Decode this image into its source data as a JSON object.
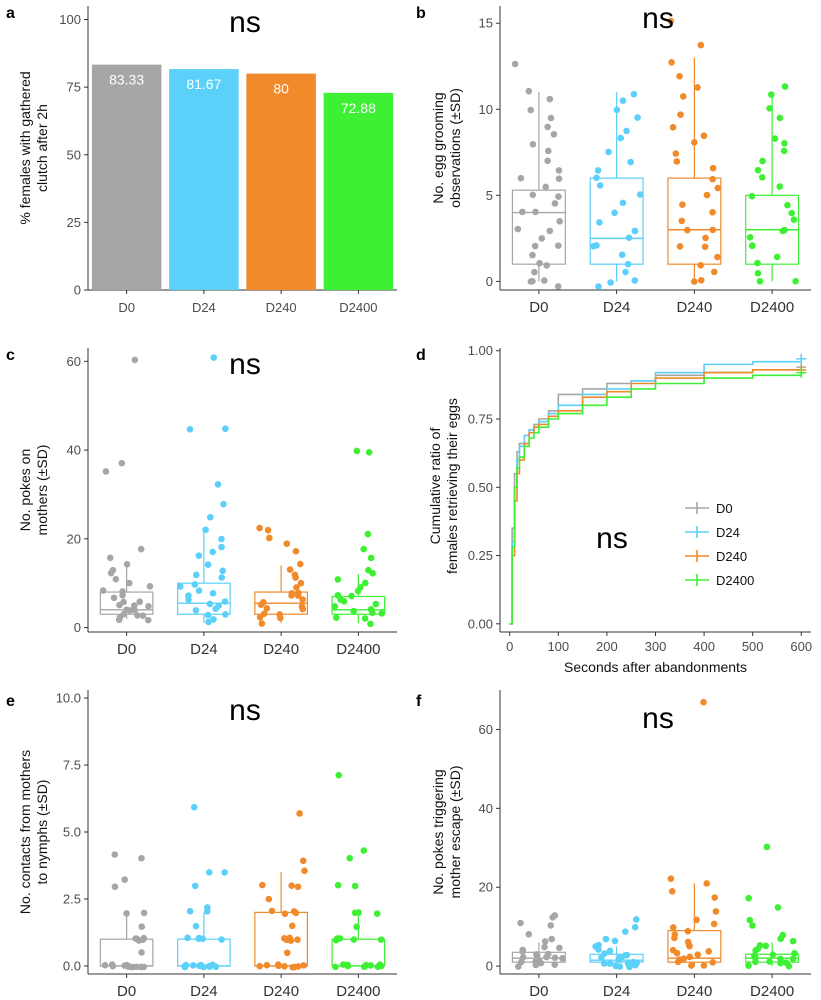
{
  "ns_label": "ns",
  "chart_data": [
    {
      "panel": "a",
      "type": "bar",
      "title": "ns",
      "categories": [
        "D0",
        "D24",
        "D240",
        "D2400"
      ],
      "values": [
        83.33,
        81.67,
        80,
        72.88
      ],
      "value_labels": [
        "83.33",
        "81.67",
        "80",
        "72.88"
      ],
      "colors": [
        "#a6a6a6",
        "#5bd0f8",
        "#f08a2a",
        "#3ef033"
      ],
      "ylabel": "% females with gathered clutch after 2h",
      "ylabel_lines": [
        "% females with gathered",
        "clutch after 2h"
      ],
      "ylim": [
        0,
        105
      ],
      "yticks": [
        0,
        25,
        50,
        75,
        100
      ],
      "ytick_labels": [
        "0",
        "25",
        "50",
        "75",
        "100"
      ]
    },
    {
      "panel": "b",
      "type": "box",
      "title": "ns",
      "categories": [
        "D0",
        "D24",
        "D240",
        "D2400"
      ],
      "colors": [
        "#a6a6a6",
        "#5bd0f8",
        "#f08a2a",
        "#3ef033"
      ],
      "ylabel": "No. egg grooming observations (±SD)",
      "ylabel_lines": [
        "No. egg grooming",
        "observations (±SD)"
      ],
      "ylim": [
        -0.5,
        16
      ],
      "yticks": [
        0,
        5,
        10,
        15
      ],
      "ytick_labels": [
        "0",
        "5",
        "10",
        "15"
      ],
      "boxes": [
        {
          "min": 0,
          "q1": 1,
          "median": 4,
          "q3": 5.3,
          "max": 11
        },
        {
          "min": 0,
          "q1": 1,
          "median": 2.5,
          "q3": 6,
          "max": 11
        },
        {
          "min": 0,
          "q1": 1,
          "median": 3,
          "q3": 6,
          "max": 13
        },
        {
          "min": 0,
          "q1": 1,
          "median": 3,
          "q3": 5,
          "max": 11
        }
      ],
      "points": [
        [
          12.7,
          11,
          10.6,
          10,
          9.5,
          9,
          8.5,
          8,
          7.5,
          7,
          6.5,
          6,
          6,
          5.5,
          5,
          5,
          4.5,
          4,
          4,
          3.5,
          3,
          3,
          2.5,
          2,
          2,
          1.5,
          1,
          1,
          0.5,
          0,
          0,
          0,
          -0.3
        ],
        [
          10.9,
          10.5,
          10,
          9.5,
          8.7,
          8.3,
          7.5,
          7,
          6.5,
          6,
          5.5,
          5,
          4.5,
          4,
          3.5,
          3,
          3,
          2.5,
          2,
          2,
          1.5,
          1,
          0.5,
          0,
          0,
          -0.3
        ],
        [
          15.2,
          13.8,
          12.8,
          12,
          11.3,
          10.7,
          9.7,
          9,
          8.5,
          8,
          7.5,
          7,
          6.5,
          6,
          5.5,
          5,
          4.5,
          4,
          3.5,
          3,
          3,
          2.5,
          2,
          2,
          1.5,
          1,
          0.5,
          0,
          0
        ],
        [
          11.4,
          10.8,
          10,
          9.5,
          8.3,
          8,
          7.5,
          7,
          6.5,
          6,
          5.5,
          5,
          4.5,
          4,
          3.5,
          3,
          3,
          2.5,
          2,
          2,
          1.5,
          1,
          0.5,
          0,
          0
        ]
      ]
    },
    {
      "panel": "c",
      "type": "box",
      "title": "ns",
      "categories": [
        "D0",
        "D24",
        "D240",
        "D2400"
      ],
      "colors": [
        "#a6a6a6",
        "#5bd0f8",
        "#f08a2a",
        "#3ef033"
      ],
      "ylabel": "No. pokes on mothers (±SD)",
      "ylabel_lines": [
        "No. pokes on",
        "mothers (±SD)"
      ],
      "ylim": [
        -1,
        63
      ],
      "yticks": [
        0,
        20,
        40,
        60
      ],
      "ytick_labels": [
        "0",
        "20",
        "40",
        "60"
      ],
      "boxes": [
        {
          "min": 2,
          "q1": 3,
          "median": 4,
          "q3": 8,
          "max": 15
        },
        {
          "min": 1,
          "q1": 3,
          "median": 5.5,
          "q3": 10,
          "max": 22
        },
        {
          "min": 1,
          "q1": 3,
          "median": 5.5,
          "q3": 8,
          "max": 14
        },
        {
          "min": 1,
          "q1": 3,
          "median": 4,
          "q3": 7,
          "max": 12
        }
      ],
      "points": [
        [
          60.5,
          37,
          35,
          18,
          16,
          14,
          13,
          12,
          11,
          10,
          9,
          8,
          8,
          7,
          7,
          6,
          6,
          5,
          5,
          5,
          4,
          4,
          4,
          3,
          3,
          3,
          2,
          2,
          2
        ],
        [
          61,
          45,
          44.5,
          32,
          28,
          25,
          22,
          20,
          18,
          17,
          16,
          14,
          13,
          12,
          11,
          10,
          9,
          8,
          8,
          7,
          6,
          6,
          5,
          5,
          4,
          4,
          3,
          3,
          2,
          1
        ],
        [
          22.5,
          22,
          20,
          19,
          17,
          14,
          13,
          12,
          11,
          10,
          9,
          8,
          8,
          7,
          7,
          6,
          6,
          5,
          5,
          4,
          4,
          3,
          3,
          2,
          2,
          1
        ],
        [
          40,
          39.5,
          21,
          18,
          16,
          13,
          12,
          11,
          10,
          9,
          8,
          7,
          7,
          6,
          6,
          5,
          5,
          4,
          4,
          3,
          3,
          2,
          2,
          1
        ]
      ]
    },
    {
      "panel": "d",
      "type": "line",
      "title": "ns",
      "series": [
        {
          "name": "D0",
          "color": "#a6a6a6",
          "x": [
            0,
            5,
            10,
            15,
            20,
            30,
            40,
            50,
            60,
            80,
            100,
            150,
            200,
            250,
            300,
            400,
            500,
            600
          ],
          "y": [
            0,
            0.35,
            0.55,
            0.63,
            0.66,
            0.69,
            0.71,
            0.73,
            0.75,
            0.78,
            0.84,
            0.86,
            0.88,
            0.89,
            0.91,
            0.92,
            0.93,
            0.94
          ]
        },
        {
          "name": "D24",
          "color": "#5bd0f8",
          "x": [
            0,
            5,
            10,
            15,
            20,
            30,
            40,
            50,
            60,
            80,
            100,
            150,
            200,
            250,
            300,
            400,
            500,
            600
          ],
          "y": [
            0,
            0.3,
            0.5,
            0.6,
            0.65,
            0.69,
            0.71,
            0.72,
            0.74,
            0.77,
            0.8,
            0.84,
            0.86,
            0.89,
            0.92,
            0.95,
            0.96,
            0.97
          ]
        },
        {
          "name": "D240",
          "color": "#f08a2a",
          "x": [
            0,
            5,
            10,
            15,
            20,
            30,
            40,
            50,
            60,
            80,
            100,
            150,
            200,
            250,
            300,
            400,
            500,
            600
          ],
          "y": [
            0,
            0.25,
            0.45,
            0.55,
            0.6,
            0.66,
            0.7,
            0.72,
            0.73,
            0.76,
            0.78,
            0.83,
            0.85,
            0.88,
            0.9,
            0.92,
            0.93,
            0.93
          ]
        },
        {
          "name": "D2400",
          "color": "#3ef033",
          "x": [
            0,
            5,
            10,
            15,
            20,
            30,
            40,
            50,
            60,
            80,
            100,
            150,
            200,
            250,
            300,
            400,
            500,
            600
          ],
          "y": [
            0,
            0.28,
            0.5,
            0.57,
            0.61,
            0.65,
            0.68,
            0.7,
            0.72,
            0.75,
            0.77,
            0.8,
            0.83,
            0.86,
            0.88,
            0.9,
            0.91,
            0.92
          ]
        }
      ],
      "xlabel": "Seconds after abandonments",
      "ylabel": "Cumulative ratio of females retrieving their eggs",
      "ylabel_lines": [
        "Cumulative ratio of",
        "females retrieving their eggs"
      ],
      "xlim": [
        -20,
        620
      ],
      "ylim": [
        -0.03,
        1.01
      ],
      "xticks": [
        0,
        100,
        200,
        300,
        400,
        500,
        600
      ],
      "xtick_labels": [
        "0",
        "100",
        "200",
        "300",
        "400",
        "500",
        "600"
      ],
      "yticks": [
        0,
        0.25,
        0.5,
        0.75,
        1
      ],
      "ytick_labels": [
        "0.00",
        "0.25",
        "0.50",
        "0.75",
        "1.00"
      ],
      "legend": [
        "D0",
        "D24",
        "D240",
        "D2400"
      ]
    },
    {
      "panel": "e",
      "type": "box",
      "title": "ns",
      "categories": [
        "D0",
        "D24",
        "D240",
        "D2400"
      ],
      "colors": [
        "#a6a6a6",
        "#5bd0f8",
        "#f08a2a",
        "#3ef033"
      ],
      "ylabel": "No. contacts from mothers to nymphs (±SD)",
      "ylabel_lines": [
        "No. contacts from mothers",
        "to nymphs (±SD)"
      ],
      "ylim": [
        -0.3,
        10.3
      ],
      "yticks": [
        0,
        2.5,
        5,
        7.5,
        10
      ],
      "ytick_labels": [
        "0.0",
        "2.5",
        "5.0",
        "7.5",
        "10.0"
      ],
      "boxes": [
        {
          "min": 0,
          "q1": 0,
          "median": 0,
          "q3": 1,
          "max": 2
        },
        {
          "min": 0,
          "q1": 0,
          "median": 0,
          "q3": 1,
          "max": 2
        },
        {
          "min": 0,
          "q1": 0,
          "median": 0,
          "q3": 2,
          "max": 3.5
        },
        {
          "min": 0,
          "q1": 0,
          "median": 0,
          "q3": 1,
          "max": 2
        }
      ],
      "points": [
        [
          4.2,
          4,
          3.2,
          3,
          2,
          2,
          1.5,
          1,
          1,
          1,
          1,
          1,
          0.5,
          0,
          0,
          0,
          0,
          0,
          0,
          0,
          0,
          0,
          0,
          0,
          0
        ],
        [
          5.9,
          3.5,
          3.5,
          3,
          2.2,
          2,
          2,
          1.5,
          1,
          1,
          1,
          1,
          1,
          0,
          0,
          0,
          0,
          0,
          0,
          0,
          0,
          0,
          0,
          0
        ],
        [
          5.7,
          3.9,
          3.5,
          3,
          3,
          3,
          2.5,
          2,
          2,
          2,
          2,
          1.5,
          1,
          1,
          1,
          1,
          1,
          0.5,
          0,
          0,
          0,
          0,
          0,
          0,
          0,
          0,
          0
        ],
        [
          7.1,
          4.3,
          4,
          3,
          3,
          2,
          2,
          2,
          1.5,
          1,
          1,
          1,
          1,
          1,
          0,
          0,
          0,
          0,
          0,
          0,
          0,
          0,
          0,
          0
        ]
      ]
    },
    {
      "panel": "f",
      "type": "box",
      "title": "ns",
      "categories": [
        "D0",
        "D24",
        "D240",
        "D2400"
      ],
      "colors": [
        "#a6a6a6",
        "#5bd0f8",
        "#f08a2a",
        "#3ef033"
      ],
      "ylabel": "No. pokes triggering mother escape (±SD)",
      "ylabel_lines": [
        "No. pokes triggering",
        "mother escape (±SD)"
      ],
      "ylim": [
        -2,
        70
      ],
      "yticks": [
        0,
        20,
        40,
        60
      ],
      "ytick_labels": [
        "0",
        "20",
        "40",
        "60"
      ],
      "boxes": [
        {
          "min": 0,
          "q1": 1,
          "median": 2,
          "q3": 3.5,
          "max": 6
        },
        {
          "min": 0,
          "q1": 1,
          "median": 1.5,
          "q3": 3,
          "max": 5
        },
        {
          "min": 0,
          "q1": 1,
          "median": 2,
          "q3": 9,
          "max": 21
        },
        {
          "min": 0,
          "q1": 1,
          "median": 2,
          "q3": 3,
          "max": 6
        }
      ],
      "points": [
        [
          13,
          12,
          11,
          10,
          8,
          7,
          6,
          5,
          5,
          4,
          4,
          3,
          3,
          3,
          2,
          2,
          2,
          2,
          1,
          1,
          1,
          1,
          0,
          0,
          0
        ],
        [
          12,
          10,
          9,
          7,
          6,
          5,
          5,
          4,
          4,
          3,
          3,
          3,
          2,
          2,
          2,
          2,
          1,
          1,
          1,
          1,
          1,
          0,
          0,
          0,
          0
        ],
        [
          67,
          22,
          21,
          19,
          17,
          14,
          12,
          11,
          10,
          9,
          8,
          7,
          6,
          5,
          5,
          4,
          4,
          3,
          3,
          2,
          2,
          2,
          1,
          1,
          0,
          0
        ],
        [
          30,
          17,
          15,
          12,
          10,
          8,
          7,
          6,
          5,
          5,
          4,
          4,
          3,
          3,
          3,
          2,
          2,
          2,
          1,
          1,
          1,
          1,
          0,
          0
        ]
      ]
    }
  ]
}
